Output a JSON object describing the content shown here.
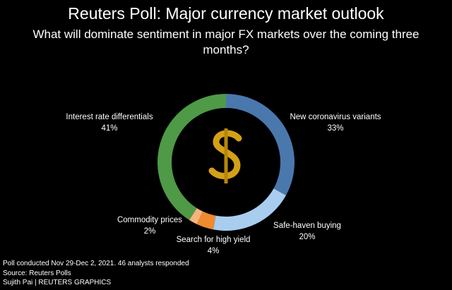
{
  "chart_data": {
    "type": "donut",
    "title": "Reuters Poll: Major currency market outlook",
    "subtitle": "What will dominate sentiment in major FX markets over the coming three months?",
    "categories": [
      "New coronavirus variants",
      "Safe-haven buying",
      "Search for high yield",
      "Commodity prices",
      "Interest rate differentials"
    ],
    "values": [
      33,
      20,
      4,
      2,
      41
    ],
    "value_labels": [
      "33%",
      "20%",
      "4%",
      "2%",
      "41%"
    ],
    "colors": [
      "#4a78ad",
      "#a8cdef",
      "#ef8a2e",
      "#f6b47c",
      "#4f9a46"
    ],
    "footnote": "Poll conducted Nov 29-Dec 2, 2021. 46 analysts responded",
    "source": "Source: Reuters Polls",
    "credit": "Sujith Pai | REUTERS GRAPHICS"
  }
}
